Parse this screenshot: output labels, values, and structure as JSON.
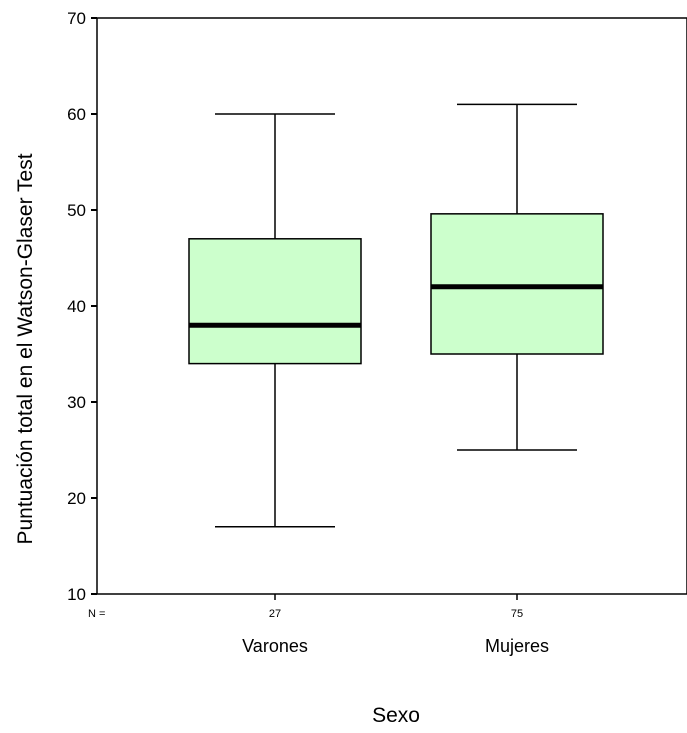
{
  "chart_data": {
    "type": "boxplot",
    "title": "",
    "xlabel": "Sexo",
    "ylabel": "Puntuación total en el Watson-Glaser Test",
    "ylim": [
      10,
      70
    ],
    "yticks": [
      10,
      20,
      30,
      40,
      50,
      60,
      70
    ],
    "grid": false,
    "n_prefix": "N =",
    "categories": [
      "Varones",
      "Mujeres"
    ],
    "n": [
      "27",
      "75"
    ],
    "boxes": [
      {
        "category": "Varones",
        "min": 17,
        "q1": 34,
        "median": 38,
        "q3": 47,
        "max": 60
      },
      {
        "category": "Mujeres",
        "min": 25,
        "q1": 35,
        "median": 42,
        "q3": 49.6,
        "max": 61
      }
    ],
    "colors": {
      "box_fill": "#ccffcc",
      "stroke": "#000000",
      "median": "#000000"
    }
  }
}
